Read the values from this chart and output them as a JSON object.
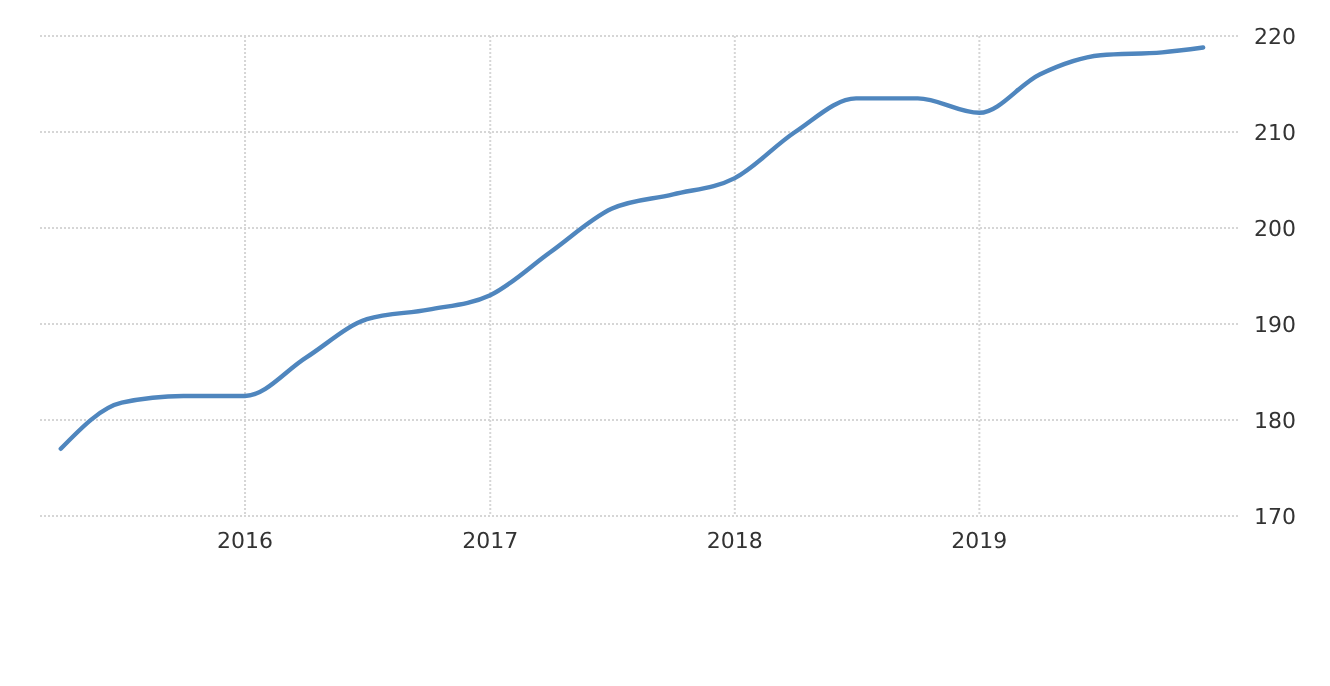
{
  "chart_data": {
    "type": "line",
    "x": [
      "2015-04-01",
      "2015-07-01",
      "2015-10-01",
      "2016-01-01",
      "2016-04-01",
      "2016-07-01",
      "2016-10-01",
      "2017-01-01",
      "2017-04-01",
      "2017-07-01",
      "2017-10-01",
      "2018-01-01",
      "2018-04-01",
      "2018-07-01",
      "2018-10-01",
      "2019-01-01",
      "2019-04-01",
      "2019-07-01",
      "2019-10-01",
      "2019-12-01"
    ],
    "series": [
      {
        "color": "#4f86be",
        "values": [
          177,
          181.8,
          182.5,
          182.5,
          186.5,
          190.5,
          191.5,
          193,
          197.5,
          202,
          203.5,
          205.2,
          210,
          213.5,
          213.5,
          212,
          216,
          218,
          218.3,
          218.8
        ]
      }
    ],
    "xlim": [
      "2015-03-01",
      "2020-01-25"
    ],
    "xticks": [
      {
        "value": "2016-01-01",
        "label": "2016"
      },
      {
        "value": "2017-01-01",
        "label": "2017"
      },
      {
        "value": "2018-01-01",
        "label": "2018"
      },
      {
        "value": "2019-01-01",
        "label": "2019"
      }
    ],
    "ylim": [
      170,
      220
    ],
    "yticks": [
      170,
      180,
      190,
      200,
      210,
      220
    ],
    "grid": true,
    "marker": "none",
    "line_style": "solid"
  }
}
